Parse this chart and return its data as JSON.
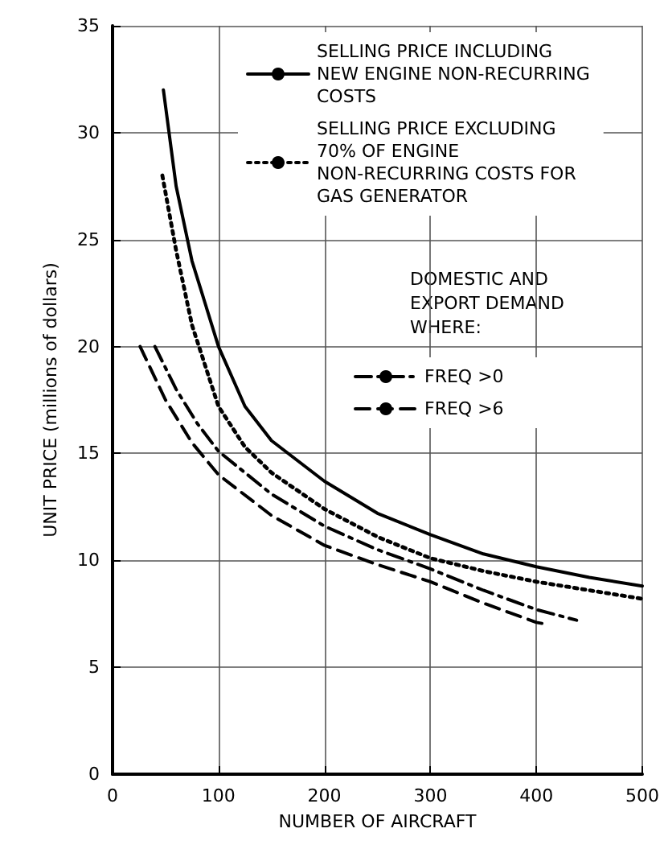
{
  "chart_data": {
    "type": "line",
    "xlabel": "NUMBER OF AIRCRAFT",
    "ylabel": "UNIT PRICE (millions of dollars)",
    "legend_title": "DOMESTIC AND EXPORT DEMAND WHERE:",
    "xlim": [
      0,
      500
    ],
    "ylim": [
      0,
      35
    ],
    "xticks": [
      0,
      100,
      200,
      300,
      400,
      500
    ],
    "yticks": [
      0,
      5,
      10,
      15,
      20,
      25,
      30,
      35
    ],
    "grid": true,
    "legend": "top right",
    "marker": "none",
    "series": [
      {
        "name": "SELLING PRICE INCLUDING NEW ENGINE NON-RECURRING COSTS",
        "color": "#000000",
        "line_style": "solid",
        "x": [
          48,
          60,
          75,
          100,
          125,
          150,
          200,
          250,
          300,
          350,
          400,
          450,
          500
        ],
        "values": [
          32,
          27.5,
          24,
          20,
          17.2,
          15.6,
          13.7,
          12.2,
          11.2,
          10.3,
          9.7,
          9.2,
          8.8
        ]
      },
      {
        "name": "SELLING PRICE EXCLUDING 70% OF ENGINE NON-RECURRING COSTS FOR GAS GENERATOR",
        "color": "#000000",
        "line_style": "dotted",
        "x": [
          47,
          60,
          75,
          100,
          125,
          150,
          200,
          250,
          300,
          350,
          400,
          450,
          500
        ],
        "values": [
          28,
          24.5,
          21,
          17.2,
          15.3,
          14.1,
          12.4,
          11.1,
          10.1,
          9.5,
          9,
          8.6,
          8.2
        ]
      },
      {
        "name": "FREQ >0",
        "color": "#000000",
        "line_style": "dashdot",
        "x": [
          40,
          60,
          80,
          100,
          150,
          200,
          250,
          300,
          350,
          400,
          438
        ],
        "values": [
          20,
          18,
          16.4,
          15.1,
          13.1,
          11.6,
          10.5,
          9.6,
          8.6,
          7.7,
          7.2
        ]
      },
      {
        "name": "FREQ >6",
        "color": "#000000",
        "line_style": "dashed",
        "x": [
          26,
          50,
          75,
          100,
          150,
          200,
          250,
          300,
          350,
          400,
          411
        ],
        "values": [
          20,
          17.5,
          15.5,
          14,
          12.1,
          10.7,
          9.8,
          9,
          8,
          7.1,
          7
        ]
      }
    ]
  }
}
